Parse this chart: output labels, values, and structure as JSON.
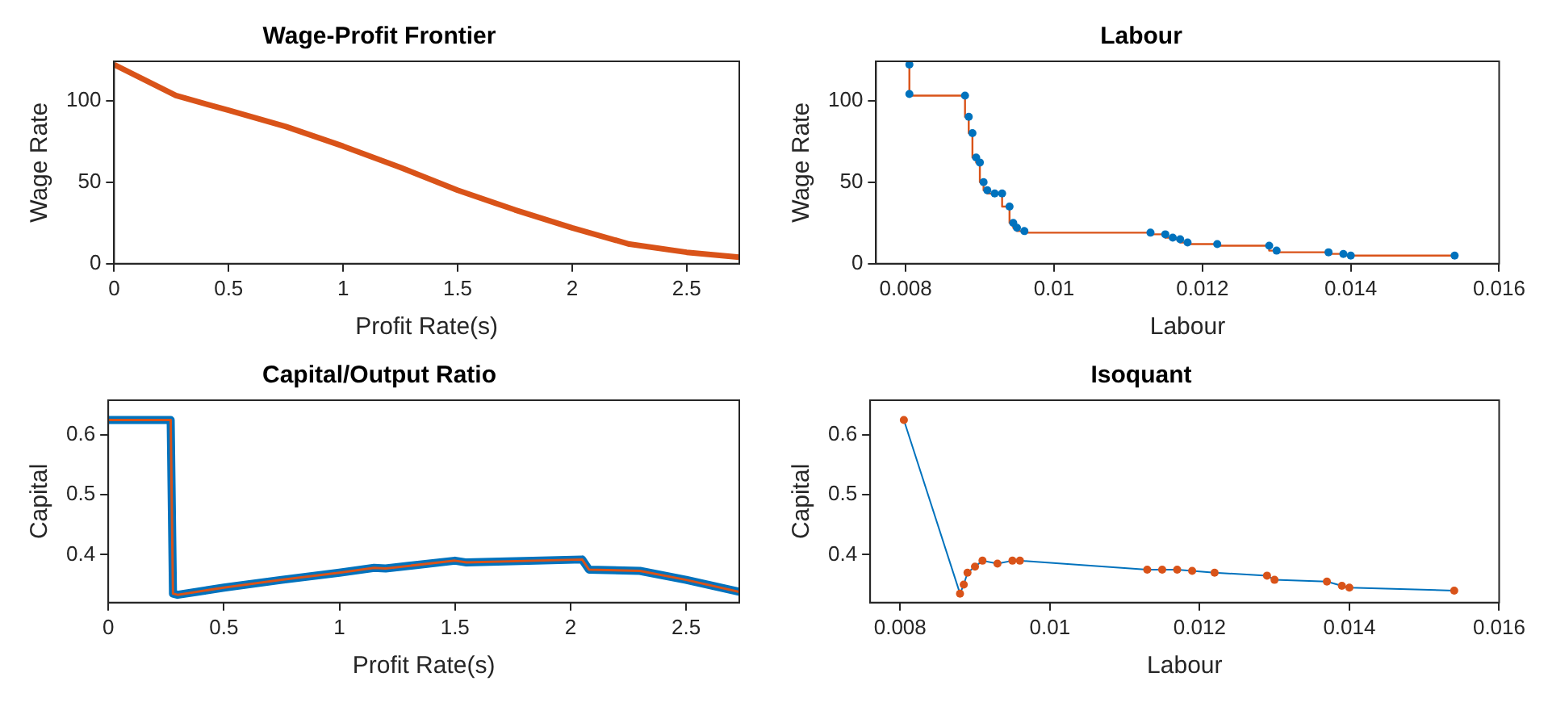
{
  "chart_data": [
    {
      "type": "line",
      "title": "Wage-Profit Frontier",
      "xlabel": "Profit Rate(s)",
      "ylabel": "Wage Rate",
      "xlim": [
        0,
        2.73
      ],
      "xticks": [
        0,
        0.5,
        1,
        1.5,
        2,
        2.5
      ],
      "ylim": [
        0,
        124
      ],
      "yticks": [
        0,
        50,
        100
      ],
      "grid": false,
      "legend": false,
      "marker": "none",
      "series": [
        {
          "color": "#d95319",
          "x": [
            0,
            0.27,
            0.5,
            0.75,
            1,
            1.25,
            1.5,
            1.75,
            2,
            2.25,
            2.5,
            2.73
          ],
          "values": [
            122,
            103,
            94,
            84,
            72,
            59,
            45,
            33,
            22,
            12,
            7,
            4
          ]
        }
      ]
    },
    {
      "type": "line",
      "title": "Labour",
      "xlabel": "Labour",
      "ylabel": "Wage Rate",
      "xlim": [
        0.0076,
        0.016
      ],
      "xticks": [
        0.008,
        0.01,
        0.012,
        0.014,
        0.016
      ],
      "ylim": [
        0,
        124
      ],
      "yticks": [
        0,
        50,
        100
      ],
      "grid": false,
      "legend": false,
      "series": [
        {
          "type": "step",
          "color": "#d95319",
          "marker": "none",
          "x": [
            0.00805,
            0.00805,
            0.0088,
            0.00885,
            0.0089,
            0.00895,
            0.009,
            0.00905,
            0.0091,
            0.0092,
            0.0093,
            0.0094,
            0.00945,
            0.0095,
            0.0096,
            0.0113,
            0.0115,
            0.0116,
            0.0117,
            0.0118,
            0.0122,
            0.0129,
            0.013,
            0.0137,
            0.0139,
            0.014,
            0.0154
          ],
          "values": [
            122,
            104,
            103,
            90,
            80,
            65,
            62,
            50,
            45,
            43,
            43,
            35,
            25,
            22,
            20,
            19,
            18,
            16,
            15,
            13,
            12,
            11,
            8,
            7,
            6,
            5,
            5
          ]
        },
        {
          "type": "scatter",
          "color": "#0072bd",
          "marker": "circle",
          "x": [
            0.00805,
            0.00805,
            0.0088,
            0.00885,
            0.0089,
            0.00895,
            0.009,
            0.00905,
            0.0091,
            0.0092,
            0.0093,
            0.0094,
            0.00945,
            0.0095,
            0.0096,
            0.0113,
            0.0115,
            0.0116,
            0.0117,
            0.0118,
            0.0122,
            0.0129,
            0.013,
            0.0137,
            0.0139,
            0.014,
            0.0154
          ],
          "values": [
            122,
            104,
            103,
            90,
            80,
            65,
            62,
            50,
            45,
            43,
            43,
            35,
            25,
            22,
            20,
            19,
            18,
            16,
            15,
            13,
            12,
            11,
            8,
            7,
            6,
            5,
            5
          ]
        }
      ]
    },
    {
      "type": "line",
      "title": "Capital/Output Ratio",
      "xlabel": "Profit Rate(s)",
      "ylabel": "Capital",
      "xlim": [
        0,
        2.73
      ],
      "xticks": [
        0,
        0.5,
        1,
        1.5,
        2,
        2.5
      ],
      "ylim": [
        0.32,
        0.658
      ],
      "yticks": [
        0.4,
        0.5,
        0.6
      ],
      "grid": false,
      "legend": false,
      "marker": "none",
      "series": [
        {
          "color": "#0072bd",
          "x": [
            0,
            0.27,
            0.28,
            0.3,
            0.5,
            0.75,
            1,
            1.15,
            1.2,
            1.5,
            1.55,
            2.05,
            2.08,
            2.3,
            2.5,
            2.73
          ],
          "values": [
            0.625,
            0.625,
            0.335,
            0.333,
            0.345,
            0.358,
            0.37,
            0.378,
            0.377,
            0.39,
            0.387,
            0.392,
            0.375,
            0.373,
            0.358,
            0.338
          ]
        },
        {
          "color": "#d95319",
          "x": [
            0,
            0.27,
            0.28,
            0.3,
            0.5,
            0.75,
            1,
            1.15,
            1.2,
            1.5,
            1.55,
            2.05,
            2.08,
            2.3,
            2.5,
            2.73
          ],
          "values": [
            0.625,
            0.625,
            0.335,
            0.333,
            0.345,
            0.358,
            0.37,
            0.378,
            0.377,
            0.39,
            0.387,
            0.392,
            0.375,
            0.373,
            0.358,
            0.338
          ]
        }
      ]
    },
    {
      "type": "line",
      "title": "Isoquant",
      "xlabel": "Labour",
      "ylabel": "Capital",
      "xlim": [
        0.0076,
        0.016
      ],
      "xticks": [
        0.008,
        0.01,
        0.012,
        0.014,
        0.016
      ],
      "ylim": [
        0.32,
        0.658
      ],
      "yticks": [
        0.4,
        0.5,
        0.6
      ],
      "grid": false,
      "legend": false,
      "series": [
        {
          "color": "#0072bd",
          "marker": "none",
          "x": [
            0.00805,
            0.0088,
            0.00885,
            0.0089,
            0.009,
            0.0091,
            0.0093,
            0.0095,
            0.0096,
            0.0113,
            0.0115,
            0.0117,
            0.0119,
            0.0122,
            0.0129,
            0.013,
            0.0137,
            0.0139,
            0.014,
            0.0154
          ],
          "values": [
            0.625,
            0.335,
            0.35,
            0.37,
            0.38,
            0.39,
            0.385,
            0.39,
            0.39,
            0.375,
            0.375,
            0.375,
            0.373,
            0.37,
            0.365,
            0.358,
            0.355,
            0.348,
            0.345,
            0.34
          ]
        },
        {
          "type": "scatter",
          "color": "#d95319",
          "marker": "circle",
          "x": [
            0.00805,
            0.0088,
            0.00885,
            0.0089,
            0.009,
            0.0091,
            0.0093,
            0.0095,
            0.0096,
            0.0113,
            0.0115,
            0.0117,
            0.0119,
            0.0122,
            0.0129,
            0.013,
            0.0137,
            0.0139,
            0.014,
            0.0154
          ],
          "values": [
            0.625,
            0.335,
            0.35,
            0.37,
            0.38,
            0.39,
            0.385,
            0.39,
            0.39,
            0.375,
            0.375,
            0.375,
            0.373,
            0.37,
            0.365,
            0.358,
            0.355,
            0.348,
            0.345,
            0.34
          ]
        }
      ]
    }
  ]
}
